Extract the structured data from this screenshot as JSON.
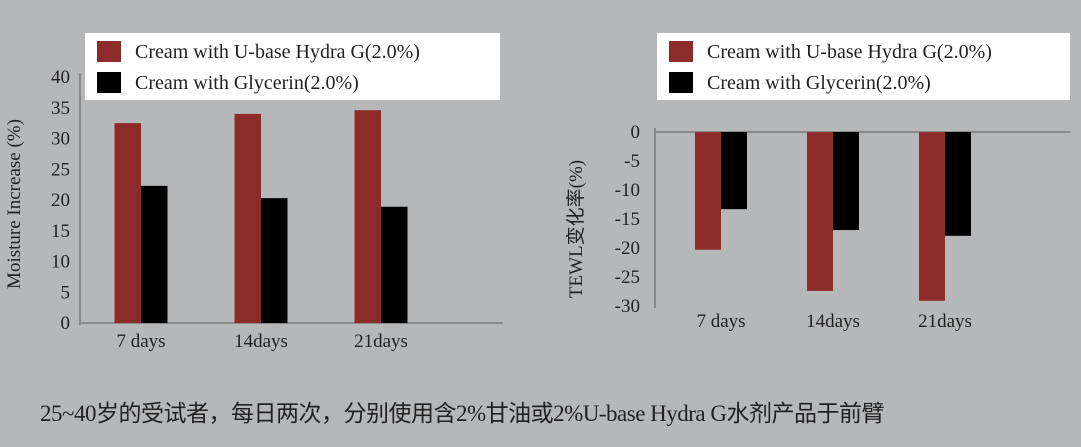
{
  "colors": {
    "background": "#b6b7b9",
    "series1": "#8b2c2a",
    "series2": "#000000",
    "axis": "#8a8a8a"
  },
  "chart_data": [
    {
      "type": "bar",
      "title": "",
      "xlabel": "",
      "ylabel": "Moisture Increase (%)",
      "categories": [
        "7 days",
        "14days",
        "21days"
      ],
      "ylim": [
        0,
        40
      ],
      "yticks": [
        "0",
        "5",
        "10",
        "15",
        "20",
        "25",
        "30",
        "35",
        "40"
      ],
      "legend_position": "top",
      "series": [
        {
          "name": "Cream with U-base Hydra G(2.0%)",
          "values": [
            32.5,
            34.0,
            34.6
          ]
        },
        {
          "name": "Cream with Glycerin(2.0%)",
          "values": [
            22.3,
            20.3,
            18.9
          ]
        }
      ]
    },
    {
      "type": "bar",
      "title": "",
      "xlabel": "",
      "ylabel": "TEWL变化率(%)",
      "categories": [
        "7 days",
        "14days",
        "21days"
      ],
      "ylim": [
        -30,
        0
      ],
      "yticks": [
        "0",
        "-5",
        "-10",
        "-15",
        "-20",
        "-25",
        "-30"
      ],
      "legend_position": "top",
      "series": [
        {
          "name": "Cream with U-base Hydra G(2.0%)",
          "values": [
            -20.3,
            -27.4,
            -29.1
          ]
        },
        {
          "name": "Cream with Glycerin(2.0%)",
          "values": [
            -13.3,
            -16.9,
            -17.9
          ]
        }
      ]
    }
  ],
  "caption": "25~40岁的受试者，每日两次，分别使用含2%甘油或2%U-base Hydra G水剂产品于前臂"
}
